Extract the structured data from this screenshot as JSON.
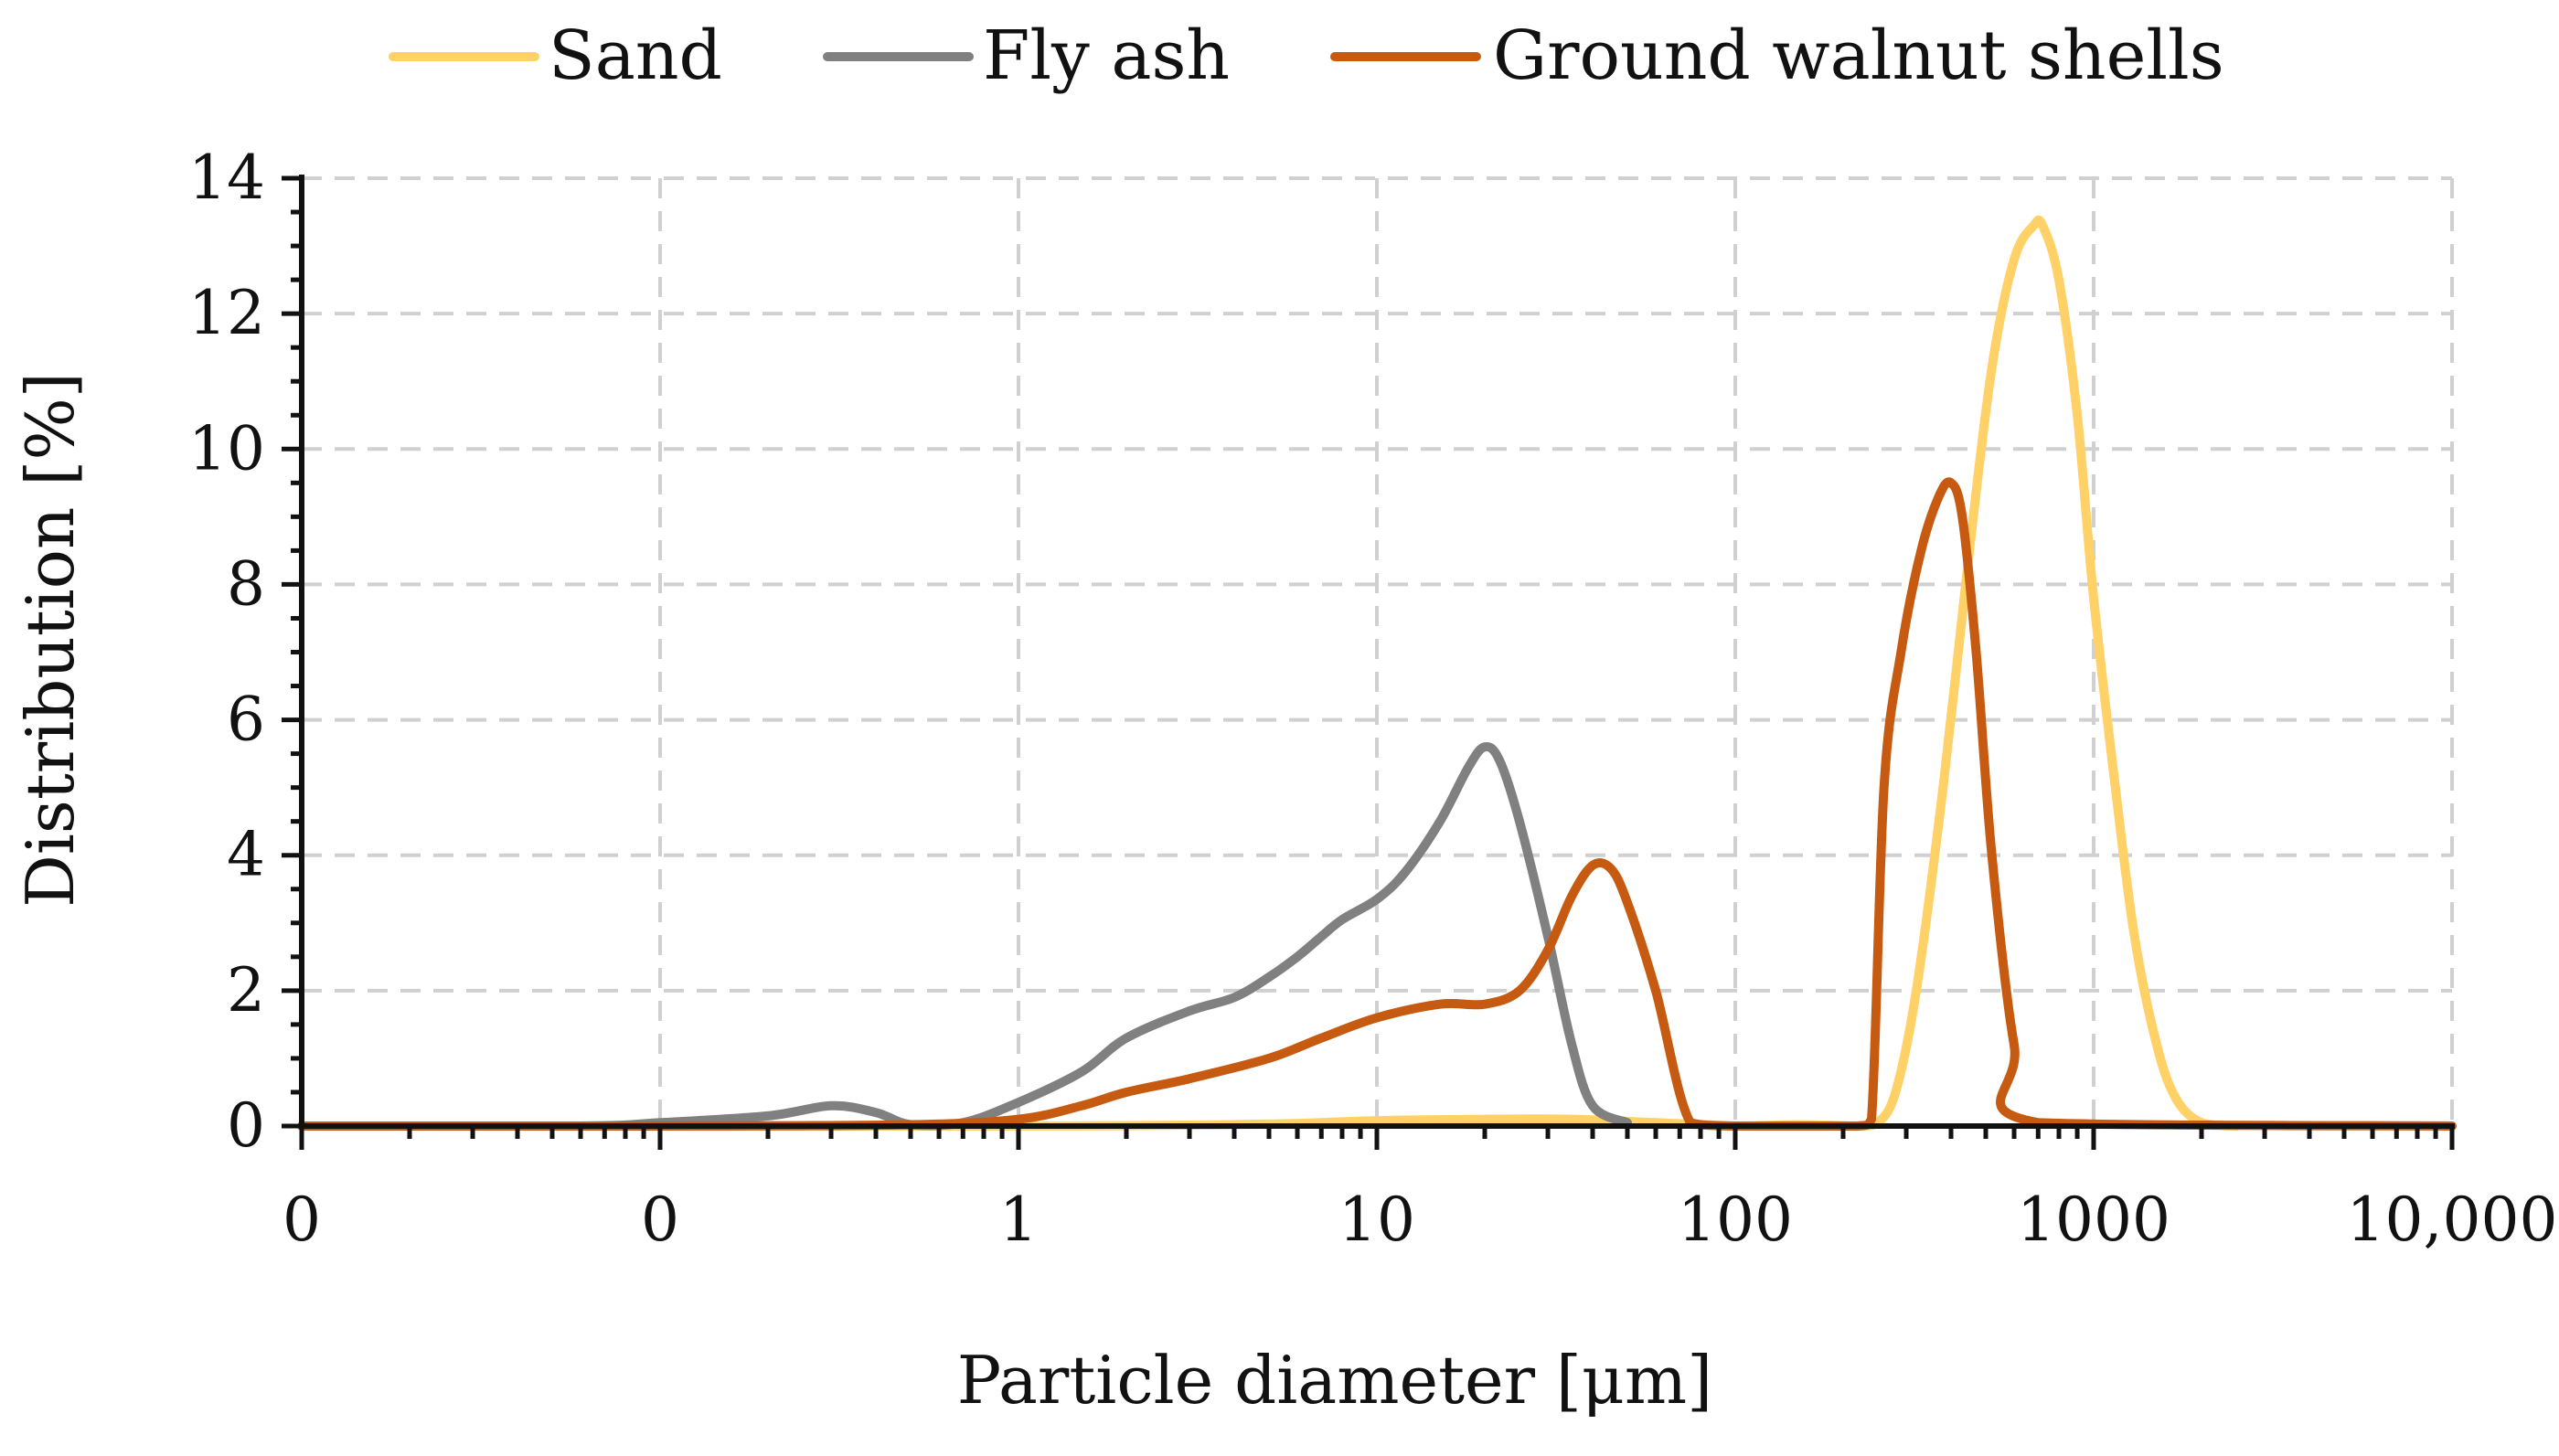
{
  "chart_data": {
    "type": "line",
    "title": "",
    "xlabel": "Particle diameter [μm]",
    "ylabel": "Distribution [%]",
    "xscale": "log",
    "xlim": [
      0.01,
      10000
    ],
    "ylim": [
      0,
      14
    ],
    "xticks": [
      0.01,
      0.1,
      1,
      10,
      100,
      1000,
      10000
    ],
    "xtick_labels": [
      "0",
      "0",
      "1",
      "10",
      "100",
      "1000",
      "10,000"
    ],
    "yticks": [
      0,
      2,
      4,
      6,
      8,
      10,
      12,
      14
    ],
    "ytick_labels": [
      "0",
      "2",
      "4",
      "6",
      "8",
      "10",
      "12",
      "14"
    ],
    "grid": true,
    "legend_position": "top",
    "series": [
      {
        "name": "Sand",
        "color": "#FFD166",
        "x": [
          0.01,
          1,
          5,
          10,
          20,
          35,
          60,
          100,
          150,
          220,
          250,
          280,
          320,
          380,
          450,
          520,
          600,
          680,
          720,
          800,
          900,
          1000,
          1150,
          1300,
          1500,
          1700,
          2000,
          2500
        ],
        "values": [
          0,
          0,
          0.03,
          0.08,
          0.1,
          0.1,
          0.05,
          0,
          0.02,
          0,
          0.05,
          0.5,
          2.0,
          5.0,
          8.5,
          11.2,
          12.8,
          13.3,
          13.3,
          12.5,
          10.5,
          7.8,
          5.0,
          2.8,
          1.2,
          0.4,
          0.05,
          0
        ]
      },
      {
        "name": "Fly ash",
        "color": "#808080",
        "x": [
          0.01,
          0.06,
          0.1,
          0.2,
          0.3,
          0.4,
          0.5,
          0.7,
          1,
          1.5,
          2,
          3,
          4,
          5,
          6,
          7,
          8,
          10,
          12,
          15,
          18,
          20,
          22,
          25,
          30,
          35,
          40,
          50
        ],
        "values": [
          0,
          0,
          0.05,
          0.15,
          0.3,
          0.2,
          0.02,
          0.05,
          0.35,
          0.8,
          1.3,
          1.7,
          1.9,
          2.2,
          2.5,
          2.8,
          3.05,
          3.35,
          3.75,
          4.5,
          5.3,
          5.6,
          5.4,
          4.5,
          2.8,
          1.2,
          0.3,
          0.05
        ]
      },
      {
        "name": "Ground walnut shells",
        "color": "#C65A11",
        "x": [
          0.01,
          0.1,
          0.5,
          1,
          1.5,
          2,
          3,
          5,
          7,
          10,
          15,
          20,
          25,
          30,
          35,
          40,
          45,
          50,
          60,
          75,
          100,
          150,
          220,
          240,
          260,
          290,
          330,
          370,
          400,
          430,
          470,
          520,
          600,
          700,
          10000
        ],
        "values": [
          0,
          0,
          0.02,
          0.1,
          0.3,
          0.5,
          0.7,
          1.0,
          1.3,
          1.6,
          1.8,
          1.8,
          2.0,
          2.6,
          3.4,
          3.85,
          3.8,
          3.3,
          2.0,
          0.05,
          0,
          0,
          0,
          0.1,
          5.0,
          7.0,
          8.5,
          9.3,
          9.5,
          9.0,
          7.0,
          4.0,
          1.2,
          0.05,
          0
        ]
      }
    ]
  }
}
